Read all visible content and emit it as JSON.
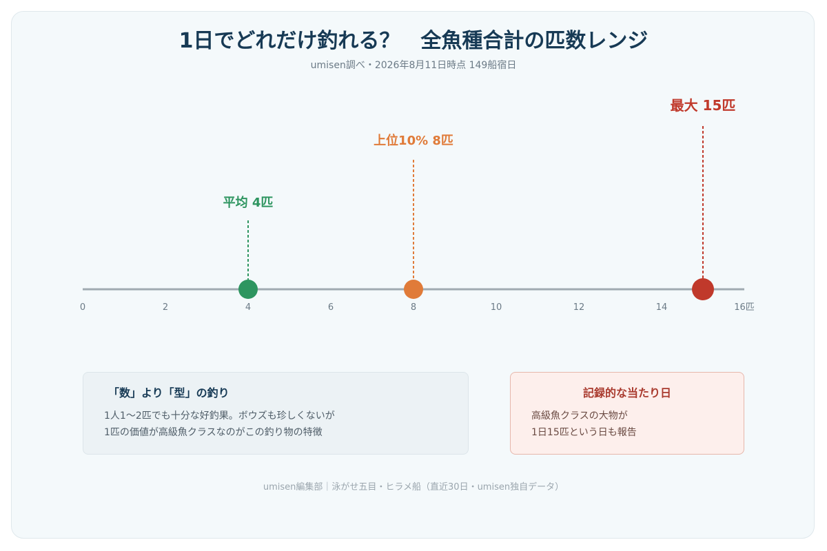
{
  "header": {
    "title": "1日でどれだけ釣れる？　全魚種合計の匹数レンジ",
    "subtitle": "umisen調べ・2026年8月11日時点 149船宿日"
  },
  "colors": {
    "axis": "#a0aab1",
    "tick_text": "#6b7a86",
    "average": "#2e9560",
    "top10": "#e07b39",
    "max": "#c0392b"
  },
  "chart_data": {
    "type": "scatter",
    "title": "1日でどれだけ釣れる？　全魚種合計の匹数レンジ",
    "subtitle": "umisen調べ・2026年8月11日時点 149船宿日",
    "xlim": [
      0,
      16
    ],
    "x_ticks": [
      0,
      2,
      4,
      6,
      8,
      10,
      12,
      14,
      16
    ],
    "x_tick_labels": [
      "0",
      "2",
      "4",
      "6",
      "8",
      "10",
      "12",
      "14",
      "16匹"
    ],
    "grid": false,
    "markers": [
      {
        "label": "平均 4匹",
        "value": 4,
        "color": "#2e9560",
        "marker": "average"
      },
      {
        "label": "上位10% 8匹",
        "value": 8,
        "color": "#e07b39",
        "marker": "top10"
      },
      {
        "label": "最大 15匹",
        "value": 15,
        "color": "#c0392b",
        "marker": "max"
      }
    ]
  },
  "notes": {
    "left": {
      "title": "「数」より「型」の釣り",
      "line1": "1人1〜2匹でも十分な好釣果。ボウズも珍しくないが",
      "line2": "1匹の価値が高級魚クラスなのがこの釣り物の特徴"
    },
    "right": {
      "title": "記録的な当たり日",
      "line1": "高級魚クラスの大物が",
      "line2": "1日15匹という日も報告"
    }
  },
  "footer": {
    "text": "umisen編集部｜泳がせ五目・ヒラメ船（直近30日・umisen独自データ）"
  }
}
